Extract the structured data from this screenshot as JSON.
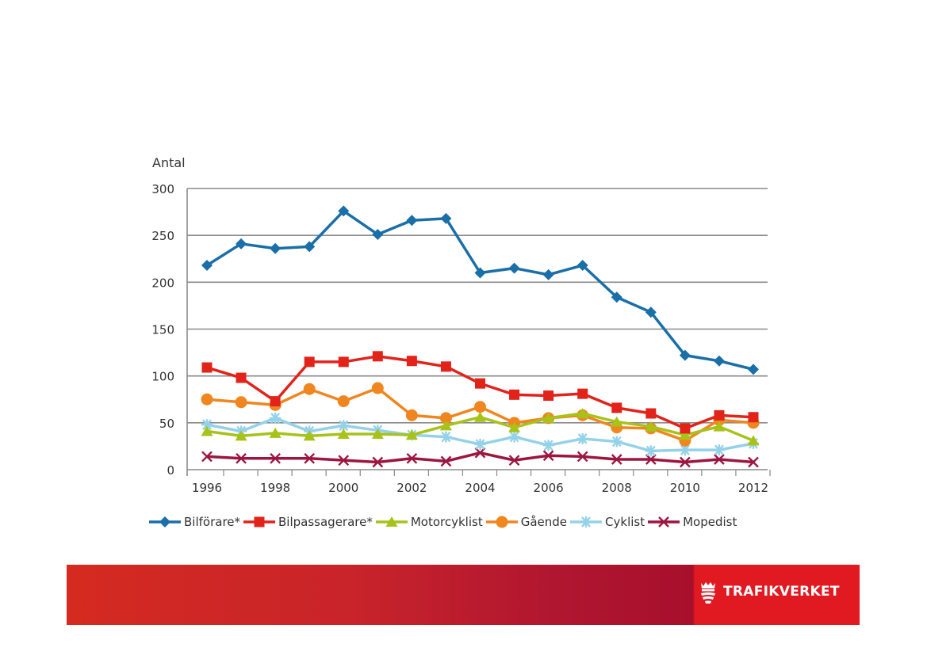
{
  "chart_data": {
    "type": "line",
    "ylabel": "Antal",
    "ylim": [
      0,
      300
    ],
    "yticks": [
      "0",
      "50",
      "100",
      "150",
      "200",
      "250",
      "300"
    ],
    "xlim": [
      1996,
      2012
    ],
    "xticks": [
      "1996",
      "1998",
      "2000",
      "2002",
      "2004",
      "2006",
      "2008",
      "2010",
      "2012"
    ],
    "x": [
      1996,
      1997,
      1998,
      1999,
      2000,
      2001,
      2002,
      2003,
      2004,
      2005,
      2006,
      2007,
      2008,
      2009,
      2010,
      2011,
      2012
    ],
    "grid": "horizontal",
    "legend_position": "bottom",
    "series": [
      {
        "name": "Bilförare*",
        "color": "#1a6fa8",
        "marker": "diamond",
        "values": [
          218,
          241,
          236,
          238,
          276,
          251,
          266,
          268,
          210,
          215,
          208,
          218,
          184,
          168,
          122,
          116,
          107
        ]
      },
      {
        "name": "Bilpassagerare*",
        "color": "#e2231a",
        "marker": "square",
        "values": [
          109,
          98,
          73,
          115,
          115,
          121,
          116,
          110,
          92,
          80,
          79,
          81,
          66,
          60,
          44,
          58,
          56
        ]
      },
      {
        "name": "Motorcyklist",
        "color": "#a8c21a",
        "marker": "triangle",
        "values": [
          41,
          36,
          39,
          36,
          38,
          38,
          37,
          47,
          56,
          45,
          55,
          60,
          51,
          46,
          37,
          46,
          31
        ]
      },
      {
        "name": "Gående",
        "color": "#f0861f",
        "marker": "circle",
        "values": [
          75,
          72,
          69,
          86,
          73,
          87,
          58,
          55,
          67,
          50,
          55,
          58,
          45,
          44,
          31,
          53,
          50
        ]
      },
      {
        "name": "Cyklist",
        "color": "#94d2ea",
        "marker": "asterisk",
        "values": [
          48,
          41,
          55,
          41,
          47,
          42,
          37,
          35,
          27,
          35,
          26,
          33,
          30,
          20,
          21,
          21,
          28
        ]
      },
      {
        "name": "Mopedist",
        "color": "#9c1640",
        "marker": "x",
        "values": [
          14,
          12,
          12,
          12,
          10,
          8,
          12,
          9,
          18,
          10,
          15,
          14,
          11,
          11,
          8,
          11,
          8
        ]
      }
    ]
  },
  "brand": {
    "name": "TRAFIKVERKET"
  }
}
